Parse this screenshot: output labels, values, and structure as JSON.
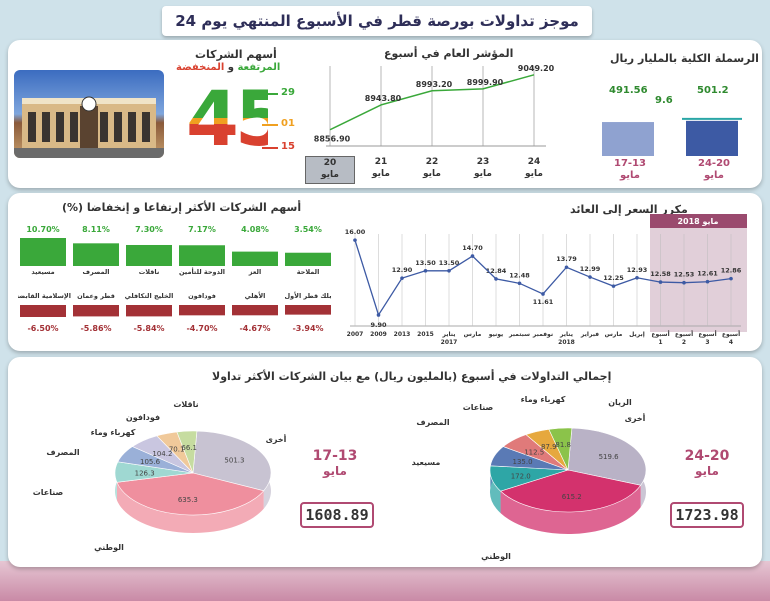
{
  "header": {
    "title": "موجز تداولات بورصة قطر في الأسبوع المنتهي يوم 24 مايو 2018"
  },
  "capitalization": {
    "title": "الرسملة الكلية بالمليار ريال",
    "prev_label": "17-13",
    "prev_sub": "مايو",
    "prev_value": "491.56",
    "curr_label": "24-20",
    "curr_sub": "مايو",
    "curr_value": "501.2",
    "change": "9.6"
  },
  "index_week": {
    "title": "المؤشر العام في أسبوع",
    "days": [
      {
        "day": "20",
        "month": "مايو",
        "value": "8856.90"
      },
      {
        "day": "21",
        "month": "مايو",
        "value": "8943.80"
      },
      {
        "day": "22",
        "month": "مايو",
        "value": "8993.20"
      },
      {
        "day": "23",
        "month": "مايو",
        "value": "8999.90"
      },
      {
        "day": "24",
        "month": "مايو",
        "value": "9049.20"
      }
    ]
  },
  "companies_movement": {
    "title": "أسهم الشركات",
    "title2": "المرتفعة",
    "connector": "و",
    "title3": "المنخفضة",
    "total": "45",
    "up": "29",
    "unchanged": "01",
    "down": "15"
  },
  "top_movers": {
    "title": "أسهم الشركات الأكثر إرتفاعا و إنخفاضا (%)",
    "gainers": [
      {
        "name": "الملاحة",
        "value": "3.54%"
      },
      {
        "name": "العز",
        "value": "4.08%"
      },
      {
        "name": "الدوحة للتأمين",
        "value": "7.17%"
      },
      {
        "name": "ناقلات",
        "value": "7.30%"
      },
      {
        "name": "المصرف",
        "value": "8.11%"
      },
      {
        "name": "مسيعيد",
        "value": "10.70%"
      }
    ],
    "losers": [
      {
        "name": "بلك قطر الأول",
        "value": "-3.94%"
      },
      {
        "name": "الأهلي",
        "value": "-4.67%"
      },
      {
        "name": "فودافون",
        "value": "-4.70%"
      },
      {
        "name": "الخليج التكافلي",
        "value": "-5.84%"
      },
      {
        "name": "قطر وعمان",
        "value": "-5.86%"
      },
      {
        "name": "الإسلامية القابضة",
        "value": "-6.50%"
      }
    ]
  },
  "pe_ratio": {
    "title": "مكرر السعر إلى العائد",
    "badge": "مايو 2018"
  },
  "turnover": {
    "title": "إجمالي التداولات في أسبوع (بالمليون ريال) مع بيان الشركات الأكثر تداولا",
    "current": {
      "range": "24-20",
      "month": "مايو",
      "total": "1723.98"
    },
    "previous": {
      "range": "17-13",
      "month": "مايو",
      "total": "1608.89"
    }
  },
  "chart_data": [
    {
      "type": "bar",
      "title": "الرسملة الكلية بالمليار ريال",
      "categories": [
        "17-13 مايو",
        "24-20 مايو"
      ],
      "values": [
        491.56,
        501.2
      ]
    },
    {
      "type": "line",
      "title": "المؤشر العام في أسبوع",
      "categories": [
        "20 مايو",
        "21 مايو",
        "22 مايو",
        "23 مايو",
        "24 مايو"
      ],
      "values": [
        8856.9,
        8943.8,
        8993.2,
        8999.9,
        9049.2
      ]
    },
    {
      "type": "bar",
      "title": "أسهم الشركات الأكثر إرتفاعا و إنخفاضا (%)",
      "series": [
        {
          "name": "gainers",
          "categories": [
            "الملاحة",
            "العز",
            "الدوحة للتأمين",
            "ناقلات",
            "المصرف",
            "مسيعيد"
          ],
          "values": [
            3.54,
            4.08,
            7.17,
            7.3,
            8.11,
            10.7
          ]
        },
        {
          "name": "losers",
          "categories": [
            "بلك قطر الأول",
            "الأهلي",
            "فودافون",
            "الخليج التكافلي",
            "قطر وعمان",
            "الإسلامية القابضة"
          ],
          "values": [
            -3.94,
            -4.67,
            -4.7,
            -5.84,
            -5.86,
            -6.5
          ]
        }
      ]
    },
    {
      "type": "line",
      "title": "مكرر السعر إلى العائد",
      "categories": [
        "2007",
        "2009",
        "2013",
        "2015",
        "يناير 2017",
        "مارس",
        "يونيو",
        "سبتمبر",
        "نوفمبر",
        "يناير 2018",
        "فبراير",
        "مارس",
        "إبريل",
        "أسبوع 1",
        "أسبوع 2",
        "أسبوع 3",
        "أسبوع 4"
      ],
      "values": [
        16.0,
        9.9,
        12.9,
        13.5,
        13.5,
        14.7,
        12.84,
        12.48,
        11.61,
        13.79,
        12.99,
        12.25,
        12.93,
        12.58,
        12.53,
        12.61,
        12.86
      ]
    },
    {
      "type": "pie",
      "title": "24-20 مايو",
      "categories": [
        "أخرى",
        "الوطني",
        "مسيعيد",
        "المصرف",
        "صناعات",
        "كهرباء وماء",
        "الريان"
      ],
      "values": [
        519.6,
        615.2,
        172.0,
        135.0,
        112.5,
        87.9,
        81.8
      ],
      "colors": [
        "#b9b2c6",
        "#d3326d",
        "#2ea6a6",
        "#5a7ab5",
        "#e07a7a",
        "#e6a83e",
        "#8bc34a"
      ]
    },
    {
      "type": "pie",
      "title": "17-13 مايو",
      "categories": [
        "أخرى",
        "الوطني",
        "صناعات",
        "المصرف",
        "كهرباء وماء",
        "فودافون",
        "ناقلات"
      ],
      "values": [
        501.3,
        635.3,
        126.3,
        105.6,
        104.2,
        70.1,
        66.1
      ],
      "colors": [
        "#c8c3d2",
        "#ef8f9e",
        "#9fd8d2",
        "#9ab0d8",
        "#c9c6e0",
        "#f0c99a",
        "#c6dca0"
      ]
    }
  ]
}
